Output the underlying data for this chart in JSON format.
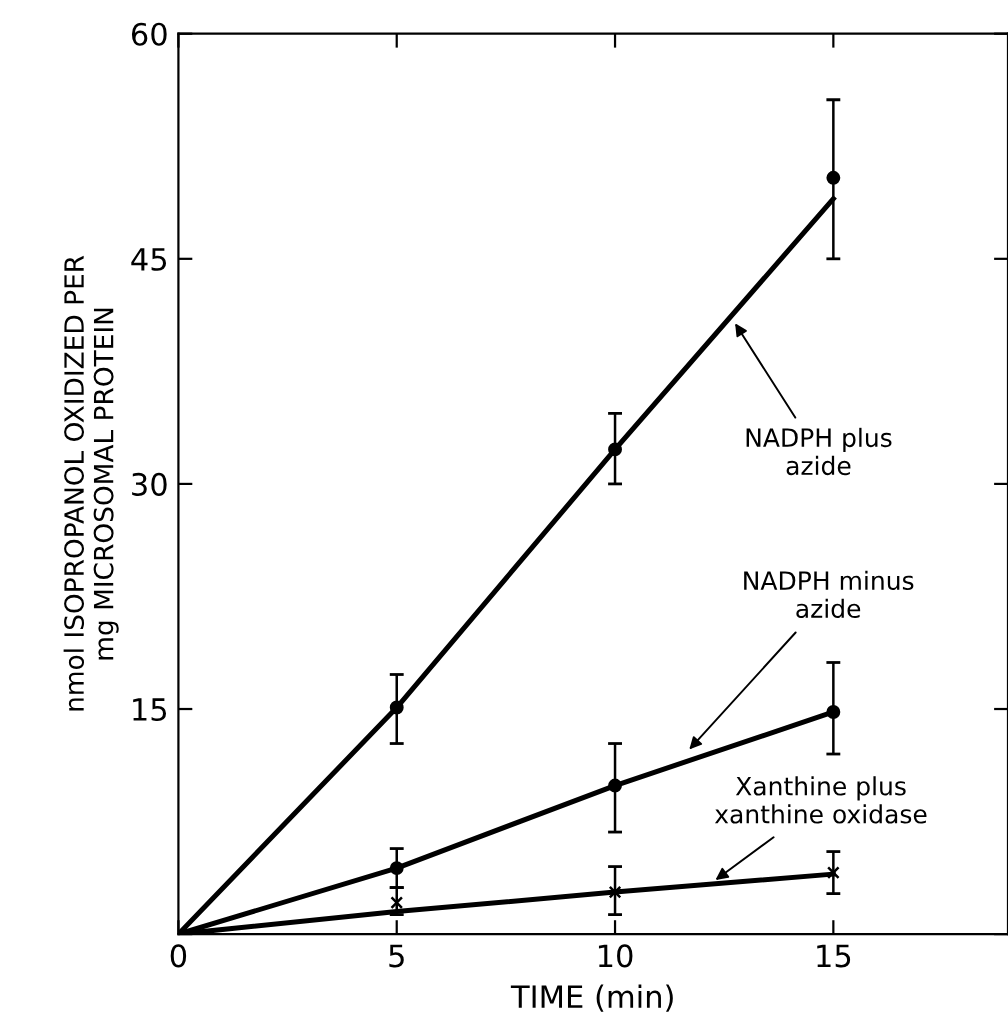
{
  "chart_data": {
    "type": "scatter",
    "xlabel": "TIME (min)",
    "ylabel": "nmol ISOPROPANOL OXIDIZED PER\nmg MICROSOMAL PROTEIN",
    "xlim": [
      0,
      19
    ],
    "ylim": [
      0,
      60
    ],
    "xticks": [
      0,
      5,
      10,
      15
    ],
    "yticks": [
      {
        "value": 0,
        "label": null
      },
      15,
      30,
      45,
      60
    ],
    "grid": false,
    "annotations": [
      {
        "text": "NADPH plus\nazide",
        "x": 12.75,
        "y": 40.7
      },
      {
        "text": "NADPH minus\nazide",
        "x": 11.7,
        "y": 12.3
      },
      {
        "text": "Xanthine plus\nxanthine oxidase",
        "x": 12.3,
        "y": 3.6
      }
    ],
    "series": [
      {
        "type": "line",
        "color": "#000000",
        "x": [
          0,
          5,
          10,
          15
        ],
        "values": [
          0,
          15.1,
          32.3,
          49.0
        ],
        "marker": "none",
        "line_style": "solid"
      },
      {
        "type": "line",
        "color": "#000000",
        "x": [
          0,
          5,
          10,
          15
        ],
        "values": [
          0,
          4.4,
          9.9,
          14.8
        ],
        "marker": "none",
        "line_style": "solid"
      },
      {
        "type": "line",
        "color": "#000000",
        "x": [
          0,
          5,
          10,
          15
        ],
        "values": [
          0,
          1.5,
          2.8,
          4.0
        ],
        "marker": "none",
        "line_style": "solid"
      },
      {
        "color": "#000000",
        "marker": "circle",
        "x": [
          5,
          10,
          15
        ],
        "values": [
          15.1,
          32.3,
          50.4
        ],
        "errors": [
          [
            12.7,
            17.3
          ],
          [
            30.0,
            34.7
          ],
          [
            45.0,
            55.6
          ]
        ]
      },
      {
        "color": "#000000",
        "marker": "circle",
        "x": [
          5,
          10,
          15
        ],
        "values": [
          4.4,
          9.9,
          14.8
        ],
        "errors": [
          [
            3.1,
            5.7
          ],
          [
            6.8,
            12.7
          ],
          [
            12.0,
            18.1
          ]
        ]
      },
      {
        "color": "#000000",
        "marker": "cross",
        "x": [
          5,
          10,
          15
        ],
        "values": [
          2.1,
          2.8,
          4.1
        ],
        "errors": [
          [
            1.3,
            3.1
          ],
          [
            1.3,
            4.5
          ],
          [
            2.7,
            5.5
          ]
        ]
      }
    ]
  }
}
